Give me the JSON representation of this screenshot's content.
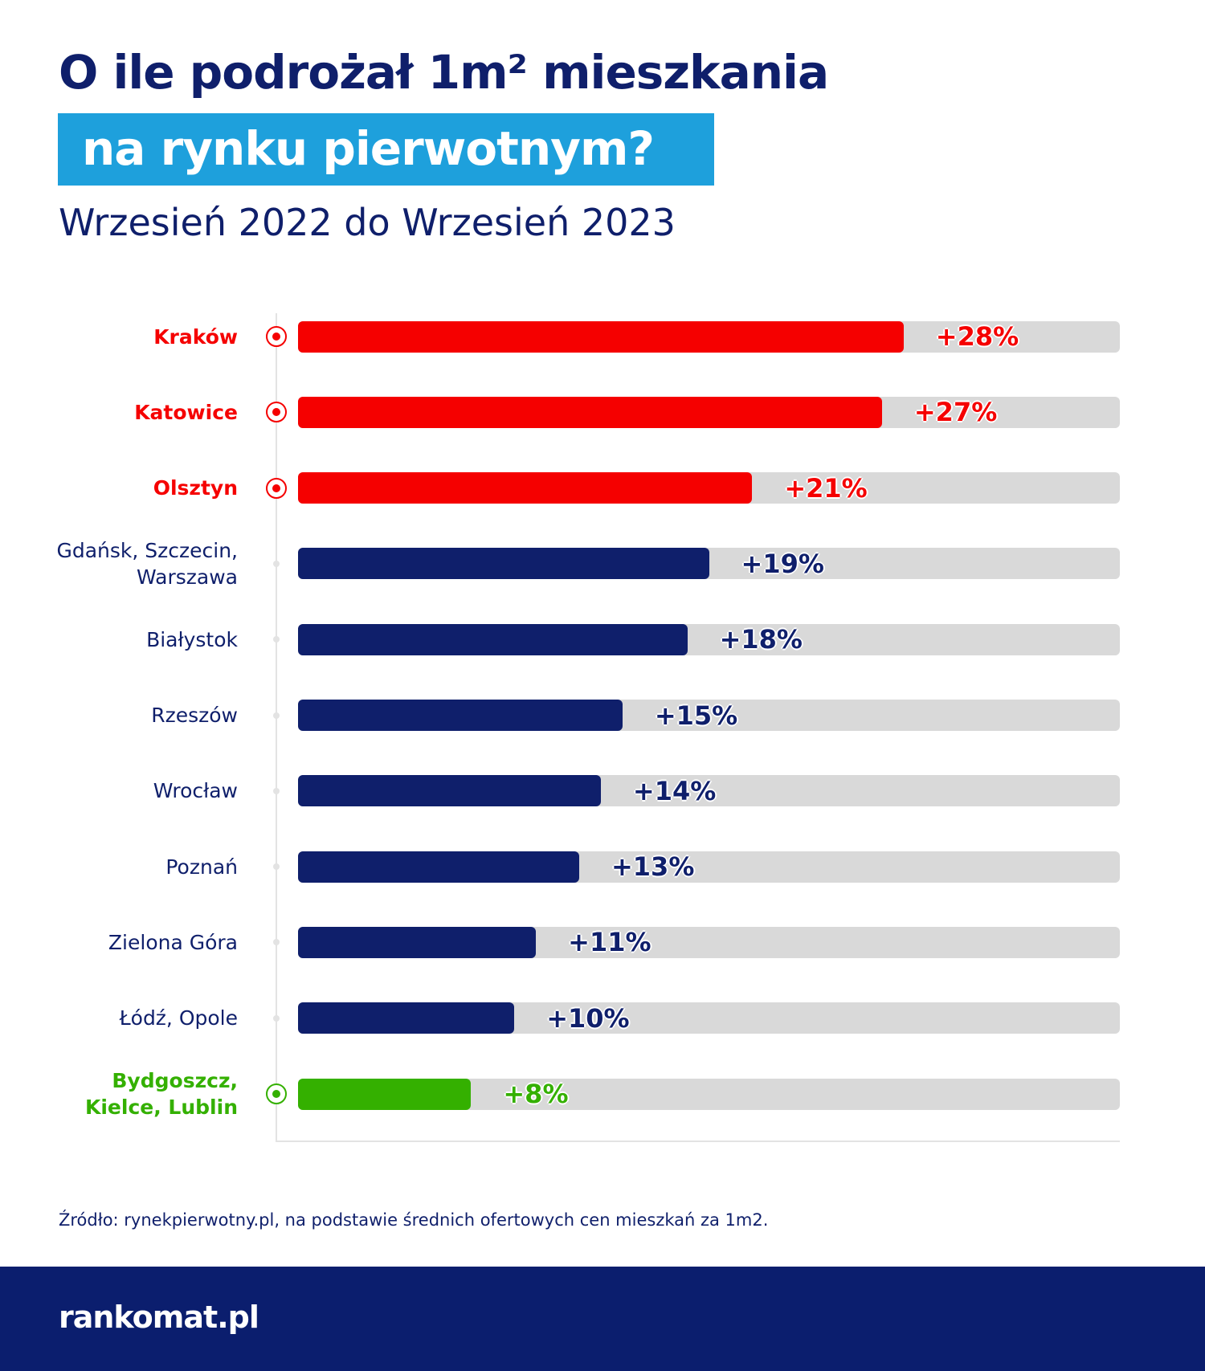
{
  "header": {
    "title": "O ile podrożał 1m² mieszkania",
    "title_highlight": "na rynku pierwotnym?",
    "subtitle": "Wrzesień 2022 do Wrzesień 2023"
  },
  "chart_data": {
    "type": "bar",
    "orientation": "horizontal",
    "categories": [
      "Kraków",
      "Katowice",
      "Olsztyn",
      "Gdańsk, Szczecin,\nWarszawa",
      "Białystok",
      "Rzeszów",
      "Wrocław",
      "Poznań",
      "Zielona Góra",
      "Łódź, Opole",
      "Bydgoszcz,\nKielce, Lublin"
    ],
    "values": [
      28,
      27,
      21,
      19,
      18,
      15,
      14,
      13,
      11,
      10,
      8
    ],
    "value_labels": [
      "+28%",
      "+27%",
      "+21%",
      "+19%",
      "+18%",
      "+15%",
      "+14%",
      "+13%",
      "+11%",
      "+10%",
      "+8%"
    ],
    "colors": [
      "#f50000",
      "#f50000",
      "#f50000",
      "#0f1f6b",
      "#0f1f6b",
      "#0f1f6b",
      "#0f1f6b",
      "#0f1f6b",
      "#0f1f6b",
      "#0f1f6b",
      "#34b000"
    ],
    "highlighted": [
      true,
      true,
      true,
      false,
      false,
      false,
      false,
      false,
      false,
      false,
      true
    ],
    "xlim": [
      0,
      38
    ]
  },
  "source": "Źródło: rynekpierwotny.pl, na podstawie średnich ofertowych cen mieszkań za 1m2.",
  "footer": {
    "logo": "rankomat.pl"
  }
}
